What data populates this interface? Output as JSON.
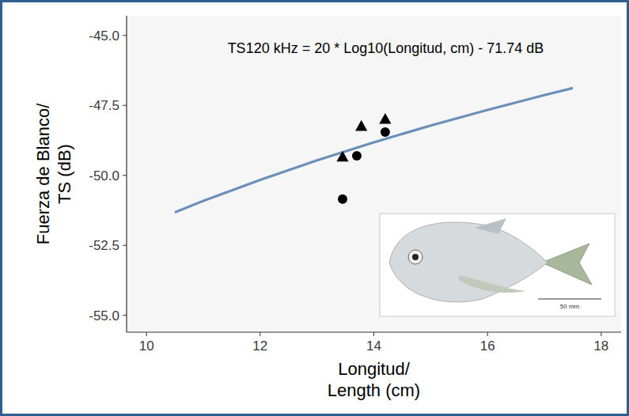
{
  "chart_data": {
    "type": "scatter",
    "x_label": "Longitud/\nLength (cm)",
    "y_label": "Fuerza de Blanco/\nTS (dB)",
    "annotations": [
      "TS120 kHz = 20 * Log10(Longitud, cm) - 71.74 dB",
      "50 mm"
    ],
    "xlim": [
      9.65,
      18.35
    ],
    "ylim": [
      -55.6,
      -44.3
    ],
    "xticks": [
      10,
      12,
      14,
      16,
      18
    ],
    "yticks": [
      {
        "value": -55,
        "label": "-55.0"
      },
      {
        "value": -52.5,
        "label": "-52.5"
      },
      {
        "value": -50,
        "label": "-50.0"
      },
      {
        "value": -47.5,
        "label": "-47.5"
      },
      {
        "value": -45,
        "label": "-45.0"
      }
    ],
    "grid": false,
    "series": [
      {
        "type": "line",
        "color": "#6b8fb8",
        "line_style": "solid",
        "x": [
          10.5,
          11,
          12,
          13,
          14,
          15,
          16,
          17,
          17.5
        ],
        "values": [
          -51.32,
          -50.91,
          -50.16,
          -49.46,
          -48.82,
          -48.22,
          -47.66,
          -47.13,
          -46.88
        ]
      },
      {
        "type": "scatter",
        "color": "#000000",
        "marker": "triangle",
        "x": [
          13.45,
          13.78,
          14.2
        ],
        "values": [
          -49.35,
          -48.25,
          -48.0
        ]
      },
      {
        "type": "scatter",
        "color": "#000000",
        "marker": "circle",
        "x": [
          13.45,
          13.7,
          14.2
        ],
        "values": [
          -50.85,
          -49.3,
          -48.45
        ]
      }
    ]
  }
}
